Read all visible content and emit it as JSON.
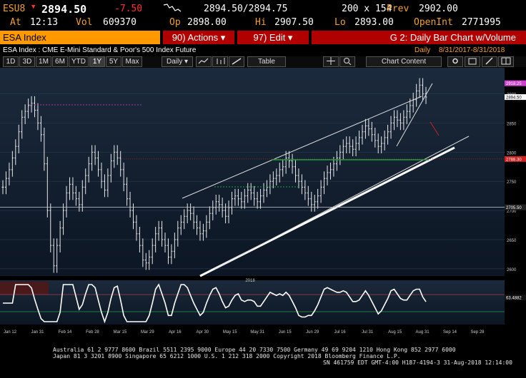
{
  "quote": {
    "ticker": "ESU8",
    "price": "2894.50",
    "change": "-7.50",
    "open_label": "2894.50/2894.75",
    "size": "200 x 154",
    "prev_label": "Prev",
    "prev": "2902.00",
    "at_label": "At",
    "time": "12:13",
    "vol_label": "Vol",
    "vol": "609370",
    "op_label": "Op",
    "op": "2898.00",
    "hi_label": "Hi",
    "hi": "2907.50",
    "lo_label": "Lo",
    "lo": "2893.00",
    "openint_label": "OpenInt",
    "openint": "2771995"
  },
  "title_bar": {
    "security": "ESA Index",
    "actions": "90) Actions ▾",
    "edit": "97) Edit ▾",
    "chart_name": "G 2: Daily Bar Chart w/Volume"
  },
  "subtitle": {
    "description": "ESA Index : CME E-Mini Standard & Poor's 500 Index Future",
    "period": "Daily",
    "range": "8/31/2017-8/31/2018"
  },
  "toolbar": {
    "ranges": [
      "1D",
      "3D",
      "1M",
      "6M",
      "YTD",
      "1Y",
      "5Y",
      "Max"
    ],
    "selected": "1Y",
    "frequency": "Daily ▾",
    "table": "Table",
    "chart_content": "Chart Content"
  },
  "chart_data": {
    "type": "bar",
    "x_ticks": [
      "Jan 12",
      "Jan 31",
      "Feb 14",
      "Feb 28",
      "Mar 15",
      "Mar 29",
      "Apr 16",
      "Apr 30",
      "May 15",
      "May 31",
      "Jun 15",
      "Jun 29",
      "Jul 16",
      "Jul 31",
      "Aug 15",
      "Aug 31",
      "Sep 14",
      "Sep 28"
    ],
    "year_label": "2018",
    "price_ticks": [
      2600,
      2650,
      2700,
      2750,
      2800,
      2850,
      2900
    ],
    "ylim": [
      2590,
      2935
    ],
    "price_markers": [
      {
        "value": "2918.25",
        "color": "#d040d0"
      },
      {
        "value": "2894.50",
        "color": "#ffffff"
      },
      {
        "value": "2788.30",
        "color": "#d02020"
      },
      {
        "value": "2705.50",
        "color": "#222222"
      }
    ],
    "indicator_markers": [
      {
        "value": "63.4882",
        "color": "#ffffff"
      }
    ],
    "closes": [
      2740,
      2755,
      2770,
      2790,
      2810,
      2835,
      2860,
      2870,
      2880,
      2884,
      2872,
      2850,
      2830,
      2780,
      2700,
      2640,
      2605,
      2640,
      2670,
      2700,
      2730,
      2745,
      2730,
      2720,
      2710,
      2740,
      2760,
      2780,
      2800,
      2790,
      2770,
      2750,
      2735,
      2760,
      2785,
      2800,
      2790,
      2770,
      2745,
      2720,
      2700,
      2680,
      2660,
      2640,
      2615,
      2610,
      2620,
      2640,
      2660,
      2670,
      2650,
      2640,
      2620,
      2630,
      2650,
      2670,
      2680,
      2690,
      2700,
      2695,
      2680,
      2670,
      2660,
      2665,
      2680,
      2695,
      2705,
      2715,
      2710,
      2700,
      2690,
      2705,
      2720,
      2725,
      2720,
      2715,
      2725,
      2735,
      2730,
      2720,
      2715,
      2725,
      2735,
      2740,
      2750,
      2755,
      2760,
      2770,
      2775,
      2790,
      2785,
      2775,
      2760,
      2750,
      2740,
      2730,
      2720,
      2710,
      2715,
      2725,
      2740,
      2755,
      2765,
      2770,
      2780,
      2790,
      2800,
      2810,
      2815,
      2810,
      2805,
      2815,
      2825,
      2835,
      2845,
      2840,
      2830,
      2820,
      2810,
      2815,
      2825,
      2835,
      2850,
      2860,
      2855,
      2850,
      2860,
      2870,
      2880,
      2890,
      2905,
      2915,
      2900,
      2894.5
    ]
  },
  "footer": {
    "line1": "Australia 61 2 9777 8600 Brazil 5511 2395 9000 Europe 44 20 7330 7500 Germany 49 69 9204 1210 Hong Kong 852 2977 6000",
    "line2": "Japan 81 3 3201 8900          Singapore 65 6212 1000          U.S. 1 212 318 2000          Copyright 2018 Bloomberg Finance L.P.",
    "line3": "SN 461759 EDT  GMT-4:00 H187-4194-3 31-Aug-2018 12:14:00"
  },
  "colors": {
    "title_red": "#b00000",
    "channel_line": "#ffffff",
    "indicator_line": "#ffffff",
    "indicator_bg": "#4a1a1a"
  }
}
